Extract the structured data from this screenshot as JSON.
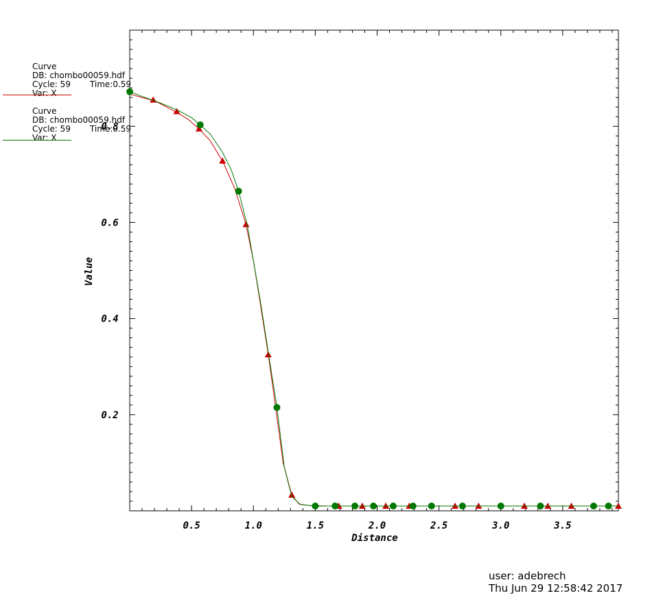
{
  "legend": [
    {
      "curve": "Curve",
      "db": "DB: chombo00059.hdf",
      "cycle": "Cycle: 59",
      "time": "Time:0.59",
      "var": "Var: X",
      "color": "#cc0000"
    },
    {
      "curve": "Curve",
      "db": "DB: chombo00059.hdf",
      "cycle": "Cycle: 59",
      "time": "Time:0.59",
      "var": "Var: X",
      "color": "#007700"
    }
  ],
  "footer": {
    "user": "user: adebrech",
    "date": "Thu Jun 29 12:58:42 2017"
  },
  "chart_data": {
    "type": "line",
    "xlabel": "Distance",
    "ylabel": "Value",
    "xlim": [
      0.0,
      3.95
    ],
    "ylim": [
      0.0,
      1.0
    ],
    "xticks": [
      0.5,
      1.0,
      1.5,
      2.0,
      2.5,
      3.0,
      3.5
    ],
    "xtick_labels": [
      "0.5",
      "1.0",
      "1.5",
      "2.0",
      "2.5",
      "3.0",
      "3.5"
    ],
    "yticks": [
      0.2,
      0.4,
      0.6,
      0.8
    ],
    "ytick_labels": [
      "0.2",
      "0.4",
      "0.6",
      "0.8"
    ],
    "series": [
      {
        "color": "#cc0000",
        "marker": "triangle",
        "x": [
          0.0,
          0.1,
          0.2,
          0.3,
          0.38,
          0.47,
          0.56,
          0.65,
          0.75,
          0.85,
          0.94,
          1.0,
          1.05,
          1.12,
          1.18,
          1.24,
          1.31,
          1.37,
          1.45,
          1.6,
          1.7,
          1.88,
          2.07,
          2.26,
          2.45,
          2.63,
          2.82,
          3.0,
          3.19,
          3.38,
          3.57,
          3.76,
          3.95
        ],
        "y": [
          0.867,
          0.86,
          0.853,
          0.84,
          0.829,
          0.815,
          0.795,
          0.77,
          0.728,
          0.67,
          0.596,
          0.52,
          0.44,
          0.325,
          0.215,
          0.1,
          0.033,
          0.014,
          0.011,
          0.01,
          0.01,
          0.01,
          0.01,
          0.01,
          0.01,
          0.01,
          0.01,
          0.01,
          0.01,
          0.01,
          0.01,
          0.01,
          0.01
        ],
        "marker_x": [
          0.19,
          0.38,
          0.56,
          0.75,
          0.94,
          1.12,
          1.31,
          1.69,
          1.88,
          2.07,
          2.26,
          2.63,
          2.82,
          3.19,
          3.38,
          3.57,
          3.95
        ],
        "marker_y": [
          0.855,
          0.831,
          0.795,
          0.728,
          0.596,
          0.325,
          0.033,
          0.01,
          0.01,
          0.01,
          0.01,
          0.01,
          0.01,
          0.01,
          0.01,
          0.01,
          0.01
        ]
      },
      {
        "color": "#007700",
        "marker": "circle",
        "x": [
          0.0,
          0.1,
          0.2,
          0.3,
          0.4,
          0.5,
          0.57,
          0.65,
          0.75,
          0.82,
          0.88,
          0.95,
          1.0,
          1.06,
          1.12,
          1.19,
          1.25,
          1.31,
          1.38,
          1.5,
          1.66,
          1.82,
          1.97,
          2.13,
          2.29,
          2.44,
          2.69,
          3.0,
          3.32,
          3.75,
          3.87,
          3.95
        ],
        "y": [
          0.872,
          0.862,
          0.853,
          0.843,
          0.832,
          0.818,
          0.803,
          0.784,
          0.746,
          0.71,
          0.665,
          0.595,
          0.52,
          0.43,
          0.33,
          0.215,
          0.09,
          0.03,
          0.013,
          0.01,
          0.01,
          0.01,
          0.01,
          0.01,
          0.01,
          0.01,
          0.01,
          0.01,
          0.01,
          0.01,
          0.01,
          0.01
        ],
        "marker_x": [
          0.0,
          0.57,
          0.88,
          1.19,
          1.5,
          1.66,
          1.82,
          1.97,
          2.13,
          2.29,
          2.44,
          2.69,
          3.0,
          3.32,
          3.75,
          3.87
        ],
        "marker_y": [
          0.872,
          0.803,
          0.665,
          0.215,
          0.01,
          0.01,
          0.01,
          0.01,
          0.01,
          0.01,
          0.01,
          0.01,
          0.01,
          0.01,
          0.01,
          0.01
        ]
      }
    ]
  }
}
